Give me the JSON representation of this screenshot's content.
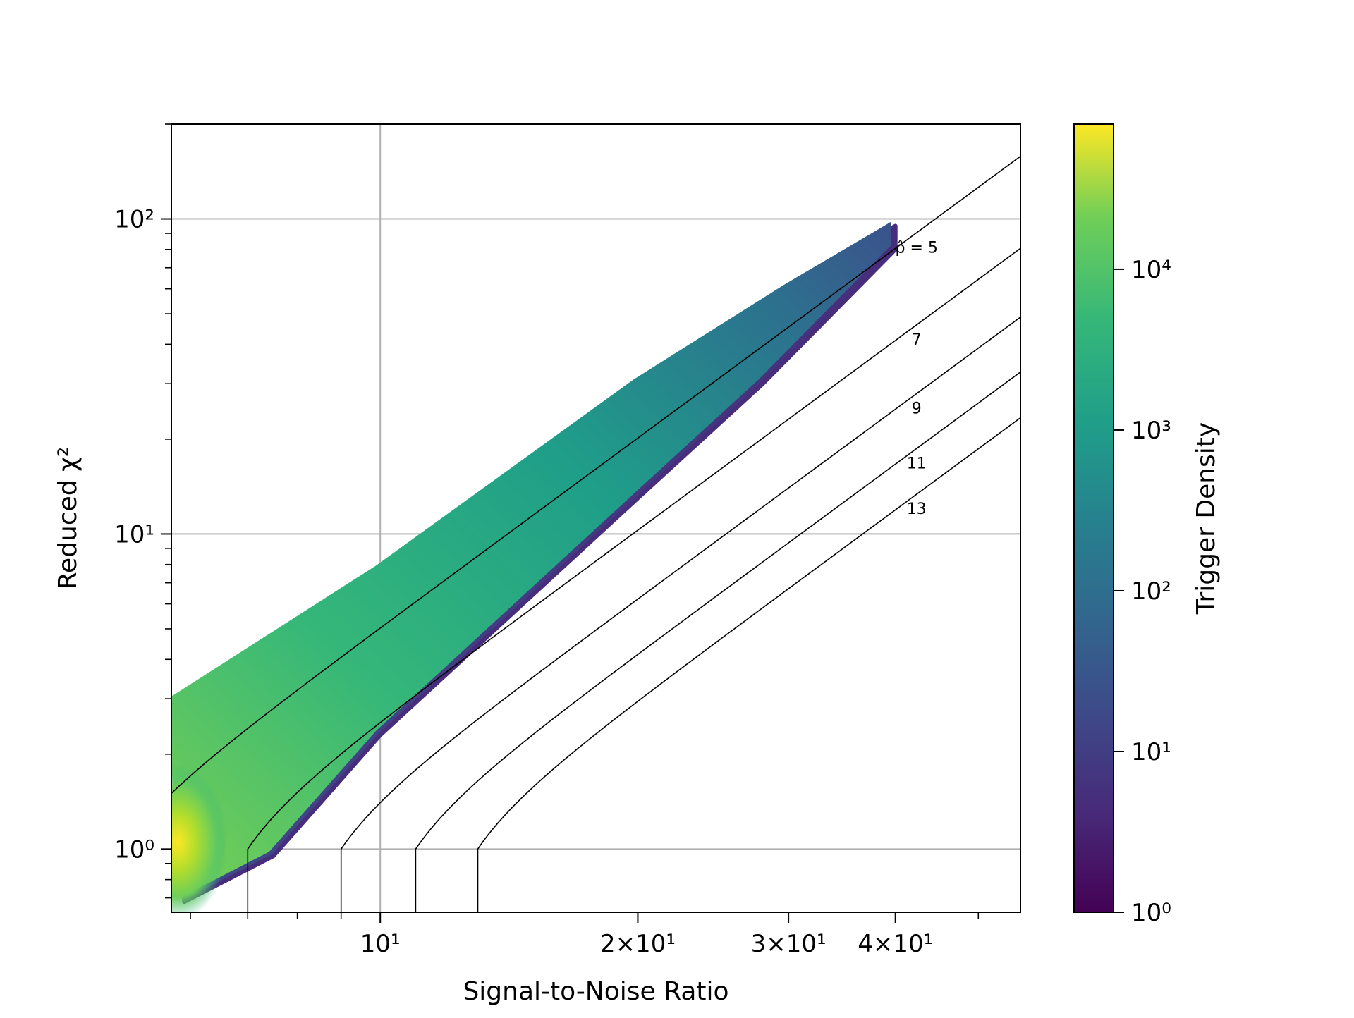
{
  "chart_data": {
    "type": "heatmap",
    "xlabel": "Signal-to-Noise Ratio",
    "ylabel": "Reduced χ²",
    "x_scale": "log",
    "y_scale": "log",
    "xlim": [
      5.7,
      56
    ],
    "ylim": [
      0.63,
      200
    ],
    "grid": true,
    "x_ticks": [
      {
        "value": 10,
        "label": "10¹"
      },
      {
        "value": 20,
        "label": "2×10¹"
      },
      {
        "value": 30,
        "label": "3×10¹"
      },
      {
        "value": 40,
        "label": "4×10¹"
      }
    ],
    "y_ticks": [
      {
        "value": 1,
        "label": "10⁰"
      },
      {
        "value": 10,
        "label": "10¹"
      },
      {
        "value": 100,
        "label": "10²"
      }
    ],
    "colorbar": {
      "label": "Trigger Density",
      "scale": "log",
      "colormap": "viridis",
      "range": [
        1,
        80000
      ],
      "tick_labels": [
        "10⁰",
        "10¹",
        "10²",
        "10³",
        "10⁴"
      ]
    },
    "density_band": {
      "description_upper_edge": [
        [
          5.7,
          2.9
        ],
        [
          10,
          7.7
        ],
        [
          20,
          30
        ],
        [
          30,
          60
        ],
        [
          40,
          95
        ]
      ],
      "description_lower_edge": [
        [
          5.9,
          0.68
        ],
        [
          7.5,
          0.95
        ],
        [
          10,
          2.3
        ],
        [
          20,
          13
        ],
        [
          28,
          30
        ],
        [
          40,
          80
        ]
      ],
      "peak": {
        "x": 5.8,
        "y": 1.05
      }
    },
    "contours": [
      {
        "label": "ρ̂ = 5",
        "rho": 5
      },
      {
        "label": "7",
        "rho": 7
      },
      {
        "label": "9",
        "rho": 9
      },
      {
        "label": "11",
        "rho": 11
      },
      {
        "label": "13",
        "rho": 13
      }
    ]
  }
}
